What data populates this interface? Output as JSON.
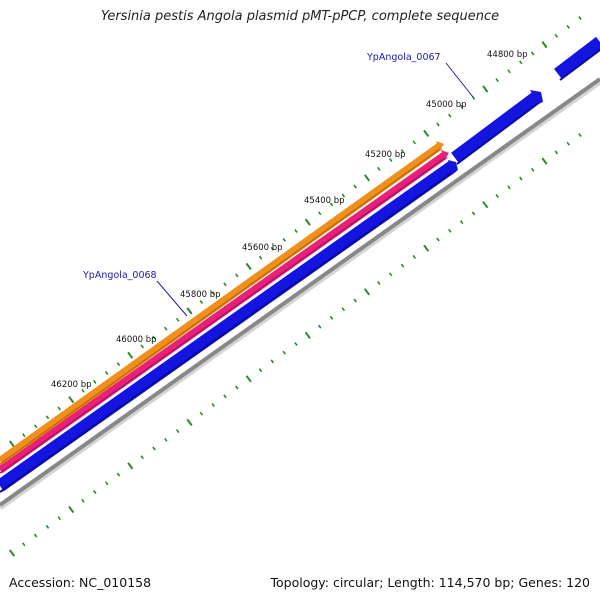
{
  "title": "Yersinia pestis Angola plasmid pMT-pPCP, complete sequence",
  "footer": {
    "accession": "Accession: NC_010158",
    "summary": "Topology: circular; Length: 114,570 bp; Genes: 120"
  },
  "position_labels": [
    "44800 bp",
    "45000 bp",
    "45200 bp",
    "45400 bp",
    "45600 bp",
    "45800 bp",
    "46000 bp",
    "46200 bp"
  ],
  "genes": [
    {
      "label": "YpAngola_0067",
      "color": "#1414e0"
    },
    {
      "label": "YpAngola_0068",
      "color": "#1414e0"
    }
  ],
  "features": [
    {
      "name": "orange-feature",
      "color": "#f0901c"
    },
    {
      "name": "pink-feature",
      "color": "#e8207c"
    },
    {
      "name": "blue-feature",
      "color": "#1414e0"
    },
    {
      "name": "backbone",
      "color": "#888888"
    }
  ],
  "colors": {
    "tick": "#2a8a2a",
    "gene_label": "#1a1aaa",
    "gene": "#1414e0",
    "backbone": "#888888"
  }
}
